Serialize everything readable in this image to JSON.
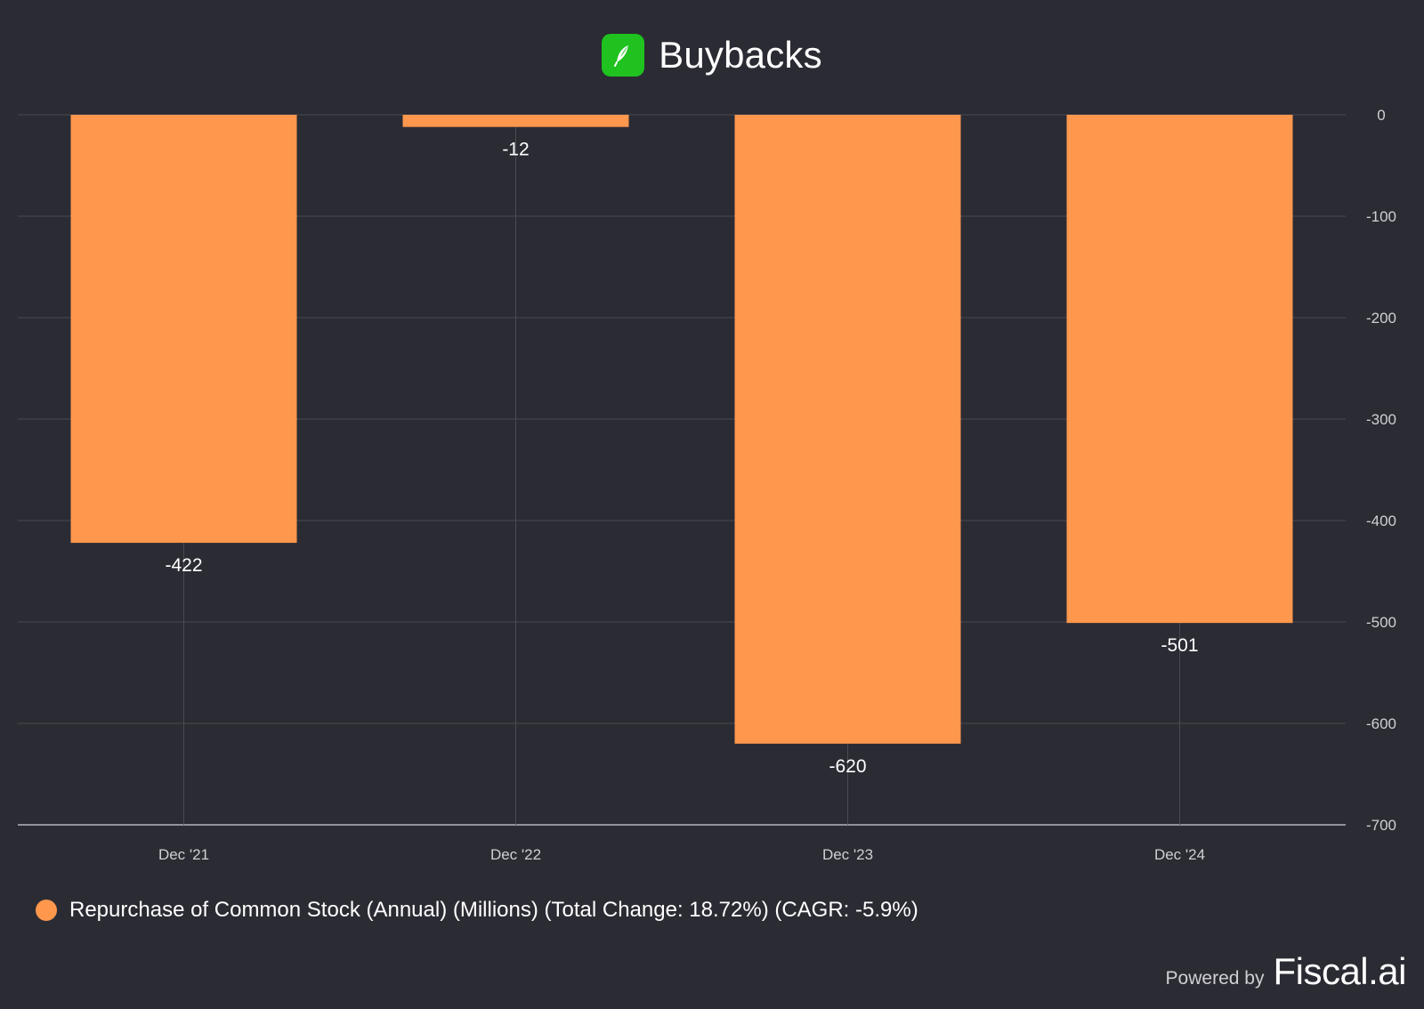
{
  "header": {
    "title": "Buybacks",
    "logo_icon": "feather-icon",
    "logo_color": "#1fc21f"
  },
  "chart_data": {
    "type": "bar",
    "title": "Buybacks",
    "categories": [
      "Dec '21",
      "Dec '22",
      "Dec '23",
      "Dec '24"
    ],
    "series": [
      {
        "name": "Repurchase of Common Stock (Annual) (Millions) (Total Change: 18.72%) (CAGR: -5.9%)",
        "values": [
          -422,
          -12,
          -620,
          -501
        ],
        "color": "#ff974d"
      }
    ],
    "ylim": [
      -700,
      0
    ],
    "yticks": [
      0,
      -100,
      -200,
      -300,
      -400,
      -500,
      -600,
      -700
    ],
    "y_axis_side": "right",
    "grid": true,
    "data_labels": true,
    "legend_position": "bottom-left",
    "background": "#2b2b33"
  },
  "footer": {
    "powered_by": "Powered by",
    "brand": "Fiscal.ai"
  }
}
